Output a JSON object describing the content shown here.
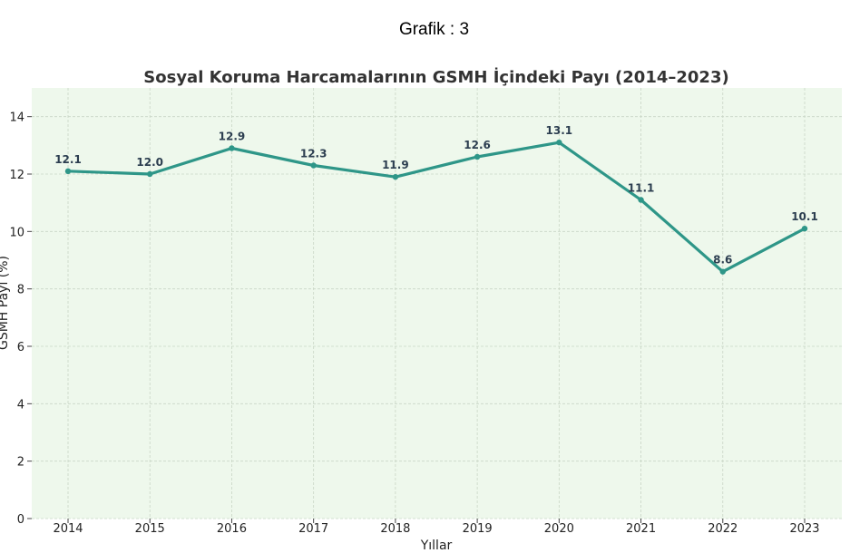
{
  "header": {
    "caption": "Grafik : 3"
  },
  "chart_data": {
    "type": "line",
    "title": "Sosyal Koruma Harcamalarının GSMH İçindeki Payı (2014–2023)",
    "xlabel": "Yıllar",
    "ylabel": "GSMH Payı (%)",
    "categories": [
      "2014",
      "2015",
      "2016",
      "2017",
      "2018",
      "2019",
      "2020",
      "2021",
      "2022",
      "2023"
    ],
    "series": [
      {
        "values": [
          12.1,
          12.0,
          12.9,
          12.3,
          11.9,
          12.6,
          13.1,
          11.1,
          8.6,
          10.1
        ]
      }
    ],
    "data_labels": [
      "12.1",
      "12.0",
      "12.9",
      "12.3",
      "11.9",
      "12.6",
      "13.1",
      "11.1",
      "8.6",
      "10.1"
    ],
    "ylim": [
      0,
      15
    ],
    "yticks": [
      0,
      2,
      4,
      6,
      8,
      10,
      12,
      14
    ],
    "grid": true,
    "colors": {
      "line": "#2e9688",
      "background": "#eef8ec",
      "grid": "#c9d6c6"
    }
  }
}
